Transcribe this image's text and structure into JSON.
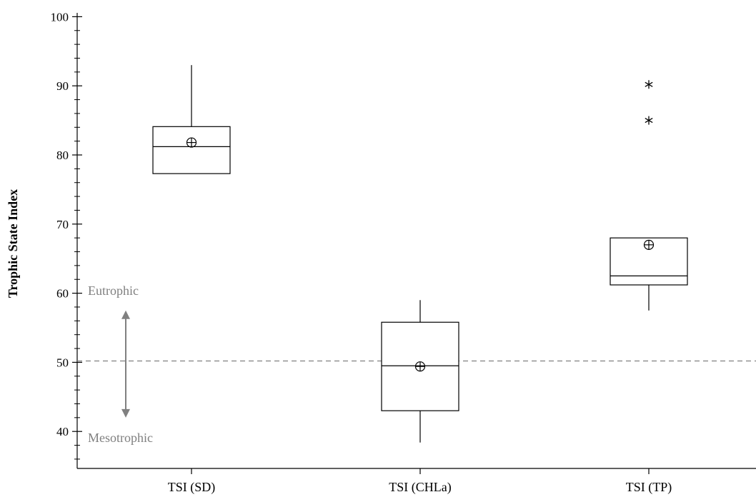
{
  "chart_data": {
    "type": "box",
    "title": "",
    "xlabel": "",
    "ylabel": "Trophic State Index",
    "ylim": [
      35,
      100
    ],
    "y_ticks": [
      40,
      50,
      60,
      70,
      80,
      90,
      100
    ],
    "y_minor_step": 2,
    "grid": false,
    "legend": "none",
    "categories": [
      "TSI (SD)",
      "TSI (CHLa)",
      "TSI (TP)"
    ],
    "series": [
      {
        "category": "TSI (SD)",
        "whisker_low": 77.3,
        "q1": 77.3,
        "median": 81.2,
        "q3": 84.1,
        "whisker_high": 93.0,
        "mean": 81.8,
        "outliers": []
      },
      {
        "category": "TSI (CHLa)",
        "whisker_low": 38.4,
        "q1": 43.0,
        "median": 49.5,
        "q3": 55.8,
        "whisker_high": 59.0,
        "mean": 49.4,
        "outliers": []
      },
      {
        "category": "TSI (TP)",
        "whisker_low": 57.5,
        "q1": 61.2,
        "median": 62.5,
        "q3": 68.0,
        "whisker_high": 68.0,
        "mean": 67.0,
        "outliers": [
          85.0,
          90.2
        ]
      }
    ],
    "reference_line": {
      "value": 50.2,
      "style": "dashed",
      "color": "#808080"
    },
    "annotations": [
      {
        "text": "Eutrophic",
        "color": "#808080"
      },
      {
        "text": "Mesotrophic",
        "color": "#808080"
      }
    ],
    "arrow": {
      "from": 42.0,
      "to": 57.5,
      "color": "#808080",
      "double_headed": true
    }
  }
}
